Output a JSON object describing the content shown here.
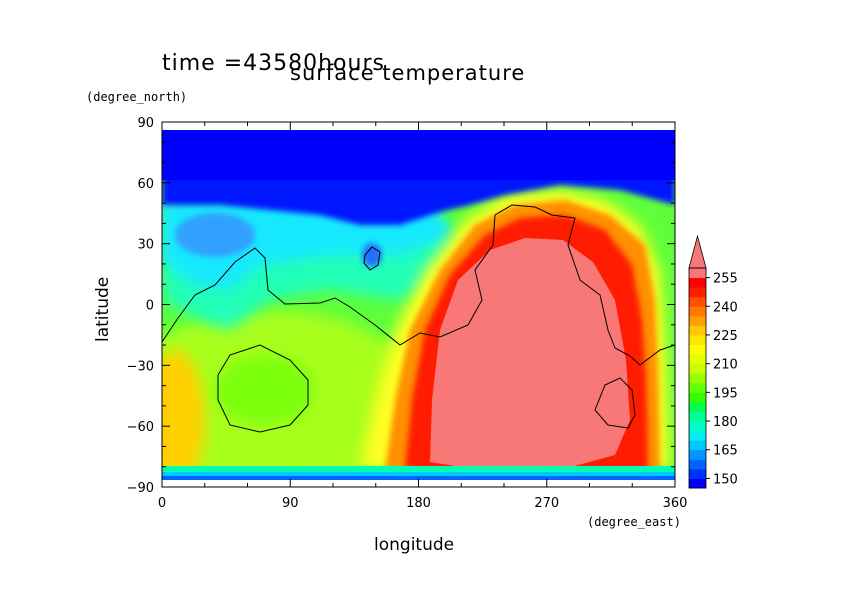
{
  "header": {
    "time_label": "time =43580hours",
    "title": "surface temperature"
  },
  "axes": {
    "x_label": "longitude",
    "x_unit": "(degree_east)",
    "y_label": "latitude",
    "y_unit": "(degree_north)"
  },
  "chart_data": {
    "type": "heatmap",
    "title": "surface temperature",
    "subtitle": "time =43580hours",
    "xlabel": "longitude",
    "ylabel": "latitude",
    "x_unit": "(degree_east)",
    "y_unit": "(degree_north)",
    "xlim": [
      0,
      360
    ],
    "ylim": [
      -90,
      90
    ],
    "x_ticks": [
      0,
      90,
      180,
      270,
      360
    ],
    "y_ticks": [
      90,
      60,
      30,
      0,
      -30,
      -60,
      -90
    ],
    "grid": false,
    "colorbar": {
      "placement": "right",
      "levels": [
        145,
        150,
        155,
        160,
        165,
        170,
        175,
        180,
        185,
        190,
        195,
        200,
        205,
        210,
        215,
        220,
        225,
        230,
        235,
        240,
        245,
        250,
        255,
        260
      ],
      "tick_labels": [
        150,
        165,
        180,
        195,
        210,
        225,
        240,
        255
      ],
      "colors": [
        "#0000ff",
        "#0032ff",
        "#0064ff",
        "#0096ff",
        "#00c8ff",
        "#00f0f0",
        "#00ffc8",
        "#00ff96",
        "#00ff50",
        "#32ff00",
        "#64ff00",
        "#96ff00",
        "#c8ff00",
        "#e6ff00",
        "#ffff00",
        "#ffe600",
        "#ffc800",
        "#ffa000",
        "#ff7800",
        "#ff5000",
        "#ff1e00",
        "#ff0000",
        "#f87878"
      ],
      "extend": "max"
    },
    "features": [
      {
        "name": "warm-region",
        "approx_center": [
          255,
          -25
        ],
        "max_level": ">255"
      },
      {
        "name": "cold-polar-band",
        "lat_range": [
          45,
          85
        ],
        "min_level": "<150"
      }
    ]
  }
}
